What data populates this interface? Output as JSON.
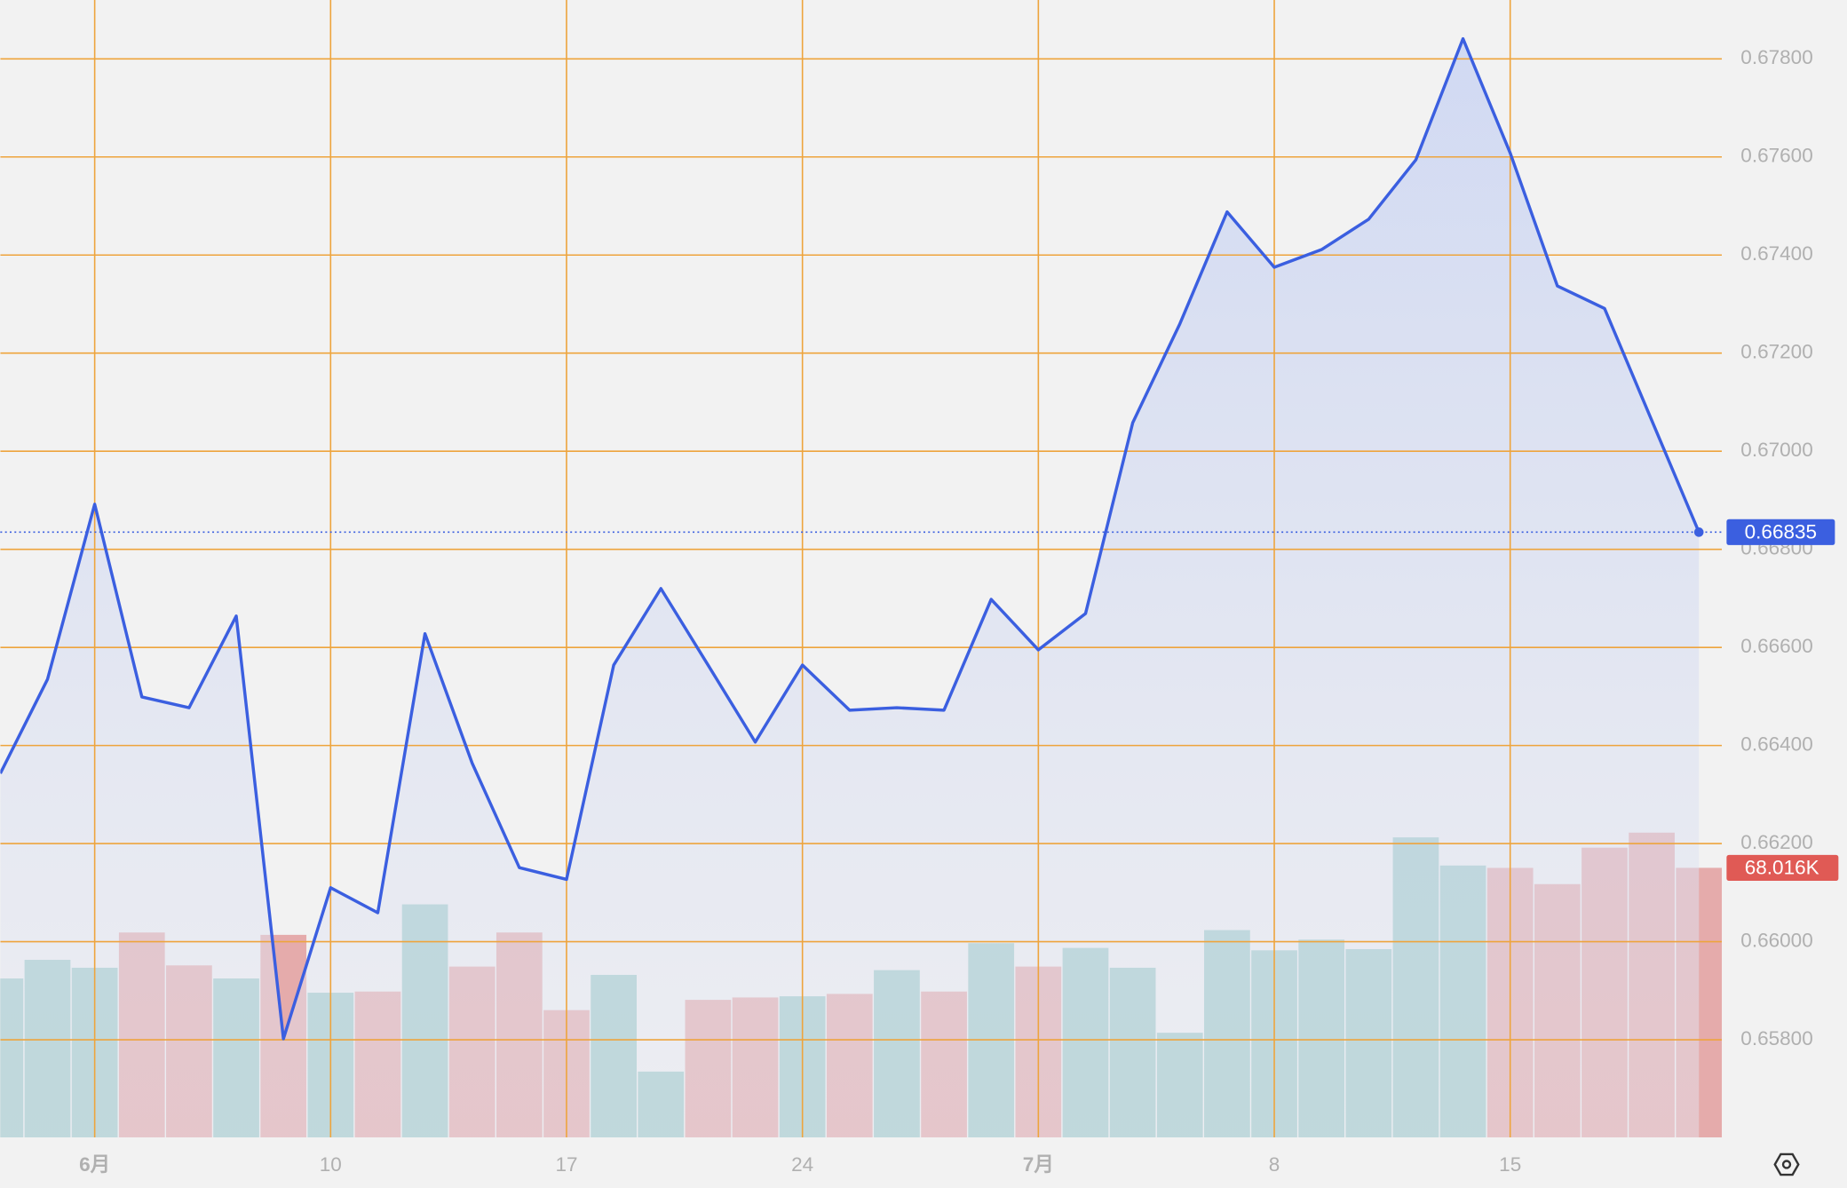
{
  "chart_data": {
    "type": "line",
    "categories": [
      null,
      null,
      "6月",
      null,
      null,
      null,
      null,
      "10",
      null,
      null,
      null,
      null,
      "17",
      null,
      null,
      null,
      null,
      "24",
      null,
      null,
      null,
      null,
      "7月",
      null,
      null,
      null,
      null,
      "8",
      null,
      null,
      null,
      null,
      "15",
      null,
      null,
      null,
      null
    ],
    "series": [
      {
        "color": "#3b5fe0",
        "values": [
          0.66343,
          0.66535,
          0.66892,
          0.66499,
          0.66477,
          0.66664,
          0.65802,
          0.6611,
          0.66059,
          0.66628,
          0.66364,
          0.66151,
          0.66127,
          0.66564,
          0.6672,
          0.66564,
          0.66407,
          0.66564,
          0.66472,
          0.66477,
          0.66472,
          0.66698,
          0.66595,
          0.66669,
          0.67058,
          0.6726,
          0.67488,
          0.67375,
          0.67411,
          0.67473,
          0.67594,
          0.67841,
          0.67608,
          0.67337,
          0.67291,
          0.67063,
          0.66835
        ],
        "value_labels": [
          null,
          null,
          null,
          null,
          null,
          null,
          null,
          null,
          null,
          null,
          null,
          null,
          null,
          null,
          null,
          null,
          null,
          null,
          null,
          null,
          null,
          null,
          null,
          null,
          null,
          null,
          null,
          null,
          null,
          null,
          null,
          null,
          null,
          null,
          null,
          null,
          "0.66835"
        ]
      }
    ],
    "volume": {
      "values": [
        40.1,
        44.8,
        42.8,
        51.7,
        43.4,
        40.1,
        51.1,
        36.5,
        36.8,
        58.8,
        43.1,
        51.7,
        32.1,
        41.0,
        16.6,
        34.7,
        35.3,
        35.6,
        36.2,
        42.2,
        36.8,
        49.0,
        43.1,
        47.8,
        42.8,
        26.4,
        52.3,
        47.2,
        49.9,
        47.5,
        75.7,
        68.6,
        68.0,
        63.9,
        73.1,
        76.9,
        68.016
      ],
      "value_labels": [
        null,
        null,
        null,
        null,
        null,
        null,
        null,
        null,
        null,
        null,
        null,
        null,
        null,
        null,
        null,
        null,
        null,
        null,
        null,
        null,
        null,
        null,
        null,
        null,
        null,
        null,
        null,
        null,
        null,
        null,
        null,
        null,
        null,
        null,
        null,
        null,
        "68.016K"
      ],
      "colors": [
        "#9bc9c6",
        "#9bc9c6",
        "#9bc9c6",
        "#e4a6a6",
        "#e4a6a6",
        "#9bc9c6",
        "#e4a6a6",
        "#9bc9c6",
        "#e4a6a6",
        "#9bc9c6",
        "#e4a6a6",
        "#e4a6a6",
        "#e4a6a6",
        "#9bc9c6",
        "#9bc9c6",
        "#e4a6a6",
        "#e4a6a6",
        "#9bc9c6",
        "#e4a6a6",
        "#9bc9c6",
        "#e4a6a6",
        "#9bc9c6",
        "#e4a6a6",
        "#9bc9c6",
        "#9bc9c6",
        "#9bc9c6",
        "#9bc9c6",
        "#9bc9c6",
        "#9bc9c6",
        "#9bc9c6",
        "#9bc9c6",
        "#9bc9c6",
        "#e4a6a6",
        "#e4a6a6",
        "#e4a6a6",
        "#e4a6a6",
        "#e4a6a6"
      ],
      "label_color": "#e05a55",
      "ylim": [
        0,
        287
      ]
    },
    "ylim": [
      0.65601,
      0.6792
    ],
    "yticks": [
      {
        "value": 0.658,
        "label": "0.65800"
      },
      {
        "value": 0.66,
        "label": "0.66000"
      },
      {
        "value": 0.662,
        "label": "0.66200"
      },
      {
        "value": 0.664,
        "label": "0.66400"
      },
      {
        "value": 0.666,
        "label": "0.66600"
      },
      {
        "value": 0.668,
        "label": "0.66800"
      },
      {
        "value": 0.67,
        "label": "0.67000"
      },
      {
        "value": 0.672,
        "label": "0.67200"
      },
      {
        "value": 0.674,
        "label": "0.67400"
      },
      {
        "value": 0.676,
        "label": "0.67600"
      },
      {
        "value": 0.678,
        "label": "0.67800"
      }
    ],
    "grid": true,
    "grid_color": "#eea43c"
  }
}
